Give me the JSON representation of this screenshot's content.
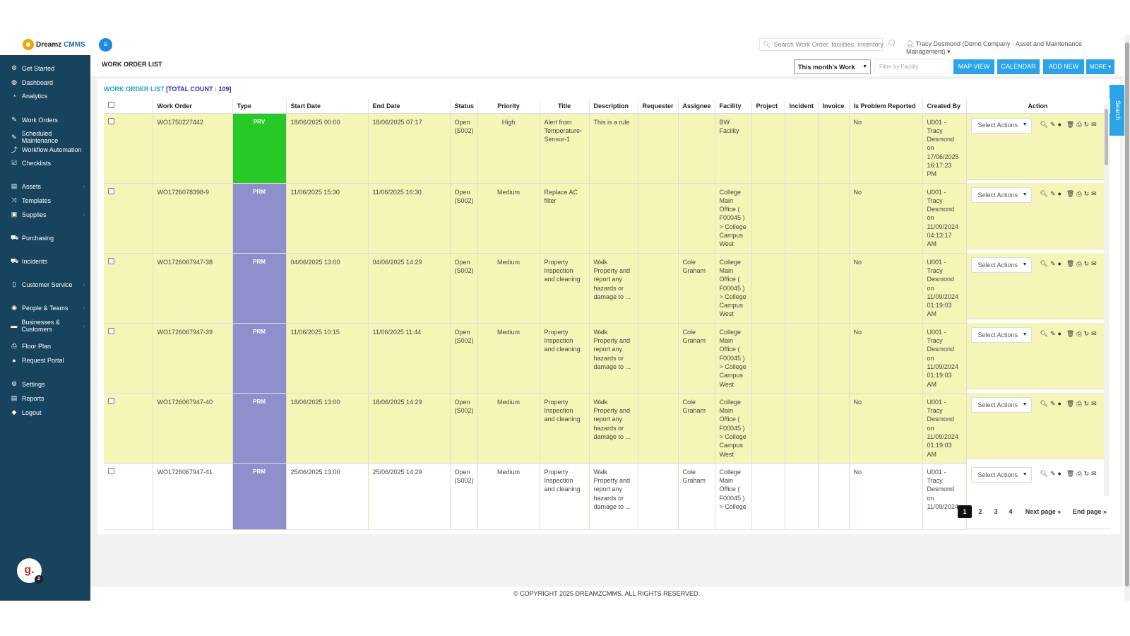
{
  "header": {
    "brand_main": "Dreamz",
    "brand_accent": "CMMS",
    "search_placeholder": "Search Work Order, facilities, inventory",
    "user_label": "Tracy Desmond (Demo Company - Asset and Maintenance Management)"
  },
  "sidebar": {
    "items": [
      {
        "label": "Get Started",
        "icon": "cogs-icon"
      },
      {
        "label": "Dashboard",
        "icon": "dashboard-icon"
      },
      {
        "label": "Analytics",
        "icon": "pie-chart-icon"
      },
      {
        "label": "Work Orders",
        "icon": "wrench-icon"
      },
      {
        "label": "Scheduled Maintenance",
        "icon": "wrench-icon"
      },
      {
        "label": "Workflow Automation",
        "icon": "workflow-icon"
      },
      {
        "label": "Checklists",
        "icon": "checkbox-icon"
      },
      {
        "label": "Assets",
        "icon": "assets-icon"
      },
      {
        "label": "Templates",
        "icon": "shuffle-icon"
      },
      {
        "label": "Supplies",
        "icon": "briefcase-icon"
      },
      {
        "label": "Purchasing",
        "icon": "cart-icon"
      },
      {
        "label": "Incidents",
        "icon": "cart-icon"
      },
      {
        "label": "Customer Service",
        "icon": "document-icon"
      },
      {
        "label": "People & Teams",
        "icon": "users-icon"
      },
      {
        "label": "Businesses & Customers",
        "icon": "camera-icon"
      },
      {
        "label": "Floor Plan",
        "icon": "print-icon"
      },
      {
        "label": "Request Portal",
        "icon": "chat-icon"
      },
      {
        "label": "Settings",
        "icon": "gear-icon"
      },
      {
        "label": "Reports",
        "icon": "report-icon"
      },
      {
        "label": "Logout",
        "icon": "user-icon"
      }
    ],
    "badge_letter": "g.",
    "badge_count": "2"
  },
  "page": {
    "title": "WORK ORDER LIST",
    "scope_value": "This month's Work",
    "facility_placeholder": "Filter by Facility",
    "buttons": {
      "map": "MAP VIEW",
      "calendar": "CALENDAR",
      "add": "ADD NEW",
      "more": "MORE ▾"
    },
    "caption": "WORK ORDER LIST",
    "count_label": "[TOTAL COUNT : 109]",
    "search_tab": "Search"
  },
  "table": {
    "columns": [
      "Work Order",
      "Type",
      "Start Date",
      "End Date",
      "Status",
      "Priority",
      "Title",
      "Description",
      "Requester",
      "Assignee",
      "Facility",
      "Project",
      "Incident",
      "Invoice",
      "Is Problem Reported",
      "Created By",
      "Action"
    ],
    "select_label": "Select Actions",
    "rows": [
      {
        "work_order": "WO1750227442",
        "type": "PRV",
        "type_color": "#27c927",
        "start": "18/06/2025 00:00",
        "end": "18/06/2025 07:17",
        "status": "Open (S002)",
        "priority": "High",
        "title": "Alert from Temperature-Sensor-1",
        "description": "This is a rule",
        "requester": "",
        "assignee": "",
        "facility": "BW Facility",
        "project": "",
        "incident": "",
        "invoice": "",
        "problem": "No",
        "created_by": "U001 - Tracy Desmond on 17/06/2025 16:17:23 PM"
      },
      {
        "work_order": "WO1726078398-9",
        "type": "PRM",
        "type_color": "#8f8fce",
        "start": "11/06/2025 15:30",
        "end": "11/06/2025 16:30",
        "status": "Open (S002)",
        "priority": "Medium",
        "title": "Replace AC filter",
        "description": "",
        "requester": "",
        "assignee": "",
        "facility": "College Main Office ( F00045 ) > College Campus West",
        "project": "",
        "incident": "",
        "invoice": "",
        "problem": "No",
        "created_by": "U001 - Tracy Desmond on 11/09/2024 04:13:17 AM"
      },
      {
        "work_order": "WO1726067947-38",
        "type": "PRM",
        "type_color": "#8f8fce",
        "start": "04/06/2025 13:00",
        "end": "04/06/2025 14:29",
        "status": "Open (S002)",
        "priority": "Medium",
        "title": "Property Inspection and cleaning",
        "description": "Walk Property and report any hazards or damage to ...",
        "requester": "",
        "assignee": "Cole Graham",
        "facility": "College Main Office ( F00045 ) > College Campus West",
        "project": "",
        "incident": "",
        "invoice": "",
        "problem": "No",
        "created_by": "U001 - Tracy Desmond on 11/09/2024 01:19:03 AM"
      },
      {
        "work_order": "WO1726067947-39",
        "type": "PRM",
        "type_color": "#8f8fce",
        "start": "11/06/2025 10:15",
        "end": "11/06/2025 11:44",
        "status": "Open (S002)",
        "priority": "Medium",
        "title": "Property Inspection and cleaning",
        "description": "Walk Property and report any hazards or damage to ...",
        "requester": "",
        "assignee": "Cole Graham",
        "facility": "College Main Office ( F00045 ) > College Campus West",
        "project": "",
        "incident": "",
        "invoice": "",
        "problem": "No",
        "created_by": "U001 - Tracy Desmond on 11/09/2024 01:19:03 AM"
      },
      {
        "work_order": "WO1726067947-40",
        "type": "PRM",
        "type_color": "#8f8fce",
        "start": "18/06/2025 13:00",
        "end": "18/06/2025 14:29",
        "status": "Open (S002)",
        "priority": "Medium",
        "title": "Property Inspection and cleaning",
        "description": "Walk Property and report any hazards or damage to ...",
        "requester": "",
        "assignee": "Cole Graham",
        "facility": "College Main Office ( F00045 ) > College Campus West",
        "project": "",
        "incident": "",
        "invoice": "",
        "problem": "No",
        "created_by": "U001 - Tracy Desmond on 11/09/2024 01:19:03 AM"
      },
      {
        "work_order": "WO1726067947-41",
        "type": "PRM",
        "type_color": "#8f8fce",
        "start": "25/06/2025 13:00",
        "end": "25/06/2025 14:29",
        "status": "Open (S002)",
        "priority": "Medium",
        "title": "Property Inspection and cleaning",
        "description": "Walk Property and report any hazards or damage to ...",
        "requester": "",
        "assignee": "Cole Graham",
        "facility": "College Main Office ( F00045 ) > College",
        "project": "",
        "incident": "",
        "invoice": "",
        "problem": "No",
        "created_by": "U001 - Tracy Desmond on 11/09/2024"
      }
    ]
  },
  "pagination": {
    "pages": [
      "1",
      "2",
      "3",
      "4"
    ],
    "next": "Next page »",
    "end": "End page »"
  },
  "footer": "© COPYRIGHT 2025 DREAMZCMMS. ALL RIGHTS RESERVED."
}
